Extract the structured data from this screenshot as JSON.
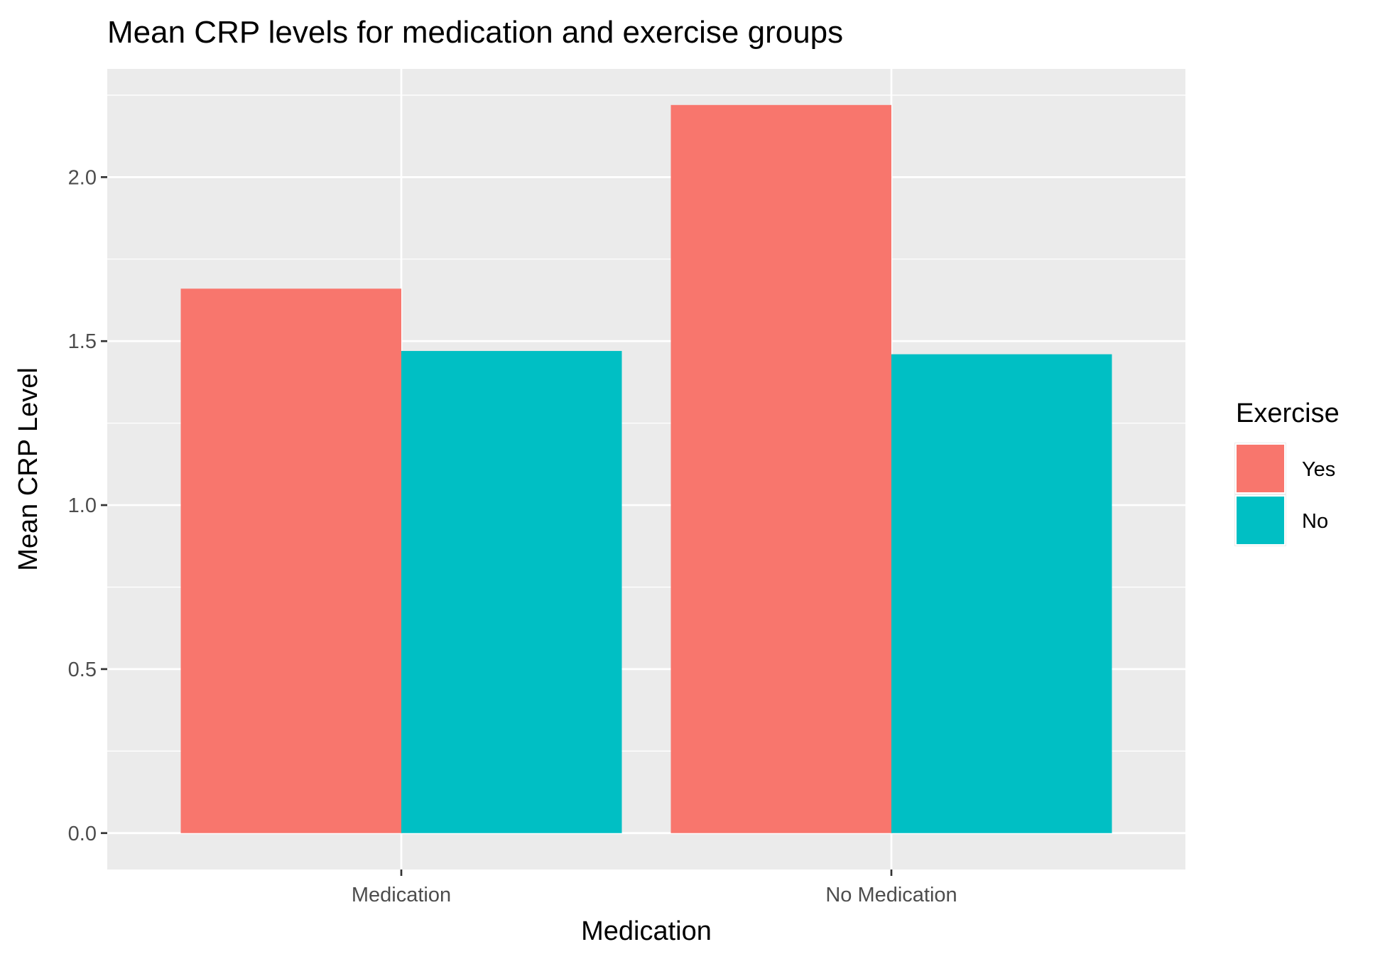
{
  "chart_data": {
    "type": "bar",
    "title": "Mean CRP levels for medication and exercise groups",
    "xlabel": "Medication",
    "ylabel": "Mean CRP Level",
    "categories": [
      "Medication",
      "No Medication"
    ],
    "series": [
      {
        "name": "Yes",
        "color": "#F8766D",
        "values": [
          1.66,
          2.22
        ]
      },
      {
        "name": "No",
        "color": "#00BFC4",
        "values": [
          1.47,
          1.46
        ]
      }
    ],
    "yticks": [
      "0.0",
      "0.5",
      "1.0",
      "1.5",
      "2.0"
    ],
    "ylim": [
      -0.111,
      2.33
    ],
    "legend": {
      "title": "Exercise",
      "position": "right"
    },
    "grid": true,
    "panel_background": "#EBEBEB"
  }
}
